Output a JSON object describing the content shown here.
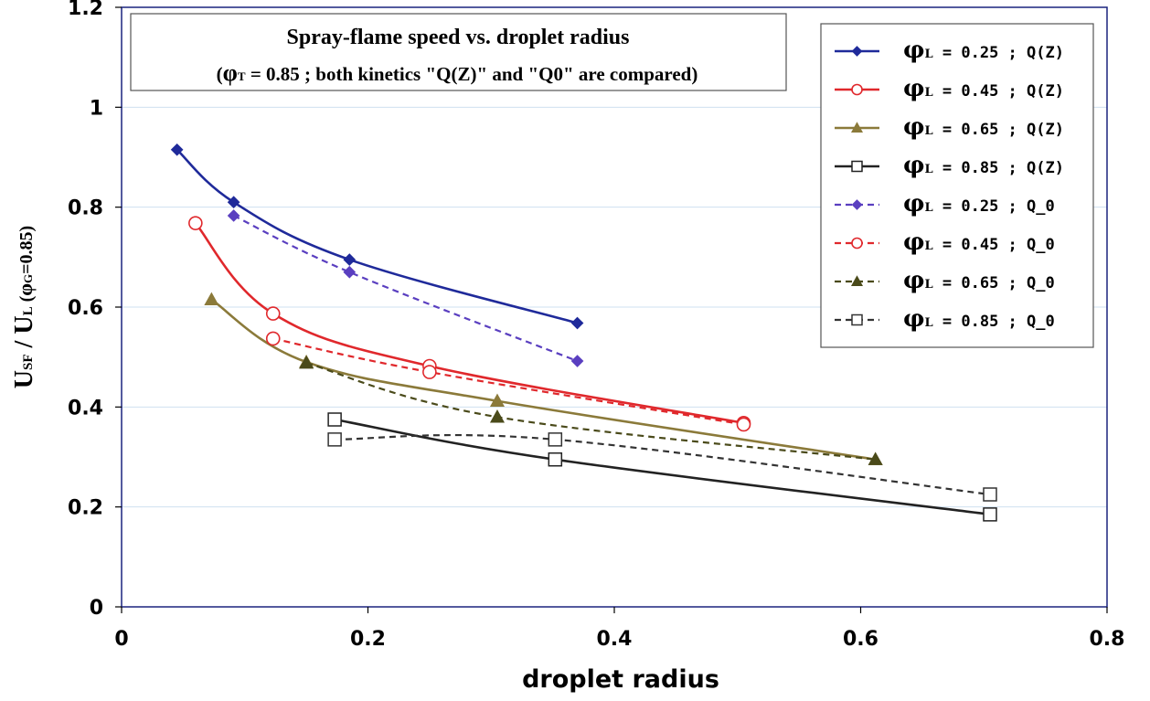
{
  "chart_data": {
    "type": "line",
    "title_line1": "Spray-flame speed vs. droplet radius",
    "title_line2": {
      "open": "(",
      "phi": "φ",
      "sub": "T",
      "rest": " = 0.85  ; both kinetics \"Q(Z)\" and \"Q0\" are compared)"
    },
    "xlabel": "droplet radius",
    "ylabel": {
      "u1": "U",
      "sub1": "SF",
      "slash": " / ",
      "u2": "U",
      "sub2": "L",
      "open": " (",
      "phi": "φ",
      "sub3": "G",
      "close": "=0.85)"
    },
    "xlim": [
      0,
      0.8
    ],
    "ylim": [
      0,
      1.2
    ],
    "x_ticks": [
      "0",
      "0.2",
      "0.4",
      "0.6",
      "0.8"
    ],
    "y_ticks": [
      "0",
      "0.2",
      "0.4",
      "0.6",
      "0.8",
      "1",
      "1.2"
    ],
    "grid": "horizontal",
    "legend_position": "top-right",
    "series": [
      {
        "name": "φL = 0.25 ; Q(Z)",
        "legend": {
          "phi": "φ",
          "sub": "L",
          "text": " = 0.25 ; Q(Z)"
        },
        "color": "#1f2a9a",
        "marker": "diamond",
        "filled": true,
        "dashed": false,
        "x": [
          0.045,
          0.091,
          0.185,
          0.37
        ],
        "y": [
          0.915,
          0.81,
          0.695,
          0.568
        ]
      },
      {
        "name": "φL = 0.45 ; Q(Z)",
        "legend": {
          "phi": "φ",
          "sub": "L",
          "text": " = 0.45 ; Q(Z)"
        },
        "color": "#e0282c",
        "marker": "circle",
        "filled": false,
        "dashed": false,
        "x": [
          0.06,
          0.123,
          0.25,
          0.505
        ],
        "y": [
          0.768,
          0.587,
          0.482,
          0.368
        ]
      },
      {
        "name": "φL = 0.65 ; Q(Z)",
        "legend": {
          "phi": "φ",
          "sub": "L",
          "text": " = 0.65 ; Q(Z)"
        },
        "color": "#8b7a3a",
        "marker": "triangle",
        "filled": true,
        "dashed": false,
        "x": [
          0.073,
          0.15,
          0.305,
          0.612
        ],
        "y": [
          0.615,
          0.49,
          0.412,
          0.295
        ]
      },
      {
        "name": "φL = 0.85 ; Q(Z)",
        "legend": {
          "phi": "φ",
          "sub": "L",
          "text": " = 0.85 ; Q(Z)"
        },
        "color": "#222222",
        "marker": "square",
        "filled": false,
        "dashed": false,
        "x": [
          0.173,
          0.352,
          0.705
        ],
        "y": [
          0.375,
          0.295,
          0.185
        ]
      },
      {
        "name": "φL = 0.25 ; Q_0",
        "legend": {
          "phi": "φ",
          "sub": "L",
          "text": " = 0.25 ; Q_0"
        },
        "color": "#5a3fc0",
        "marker": "diamond",
        "filled": true,
        "dashed": true,
        "x": [
          0.091,
          0.185,
          0.37
        ],
        "y": [
          0.783,
          0.67,
          0.492
        ]
      },
      {
        "name": "φL = 0.45 ; Q_0",
        "legend": {
          "phi": "φ",
          "sub": "L",
          "text": " = 0.45 ; Q_0"
        },
        "color": "#e0282c",
        "marker": "circle",
        "filled": false,
        "dashed": true,
        "x": [
          0.123,
          0.25,
          0.505
        ],
        "y": [
          0.537,
          0.47,
          0.365
        ]
      },
      {
        "name": "φL = 0.65 ; Q_0",
        "legend": {
          "phi": "φ",
          "sub": "L",
          "text": " = 0.65 ; Q_0"
        },
        "color": "#4a4a1a",
        "marker": "triangle",
        "filled": true,
        "dashed": true,
        "x": [
          0.15,
          0.305,
          0.612
        ],
        "y": [
          0.488,
          0.38,
          0.295
        ]
      },
      {
        "name": "φL = 0.85 ; Q_0",
        "legend": {
          "phi": "φ",
          "sub": "L",
          "text": " = 0.85 ; Q_0"
        },
        "color": "#333333",
        "marker": "square",
        "filled": false,
        "dashed": true,
        "x": [
          0.173,
          0.352,
          0.705
        ],
        "y": [
          0.335,
          0.335,
          0.225
        ]
      }
    ]
  },
  "colors": {
    "plot_border": "#1a237e",
    "gridline": "#cfe0f0"
  }
}
